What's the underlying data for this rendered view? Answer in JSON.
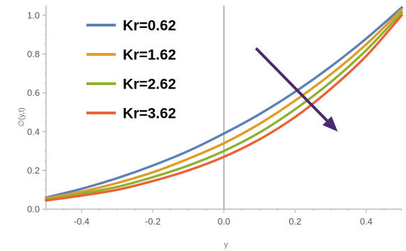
{
  "chart_data": {
    "type": "line",
    "xlabel": "y",
    "ylabel": "∅(y,t)",
    "xlim": [
      -0.5,
      0.5
    ],
    "ylim": [
      0.0,
      1.05
    ],
    "xticks": [
      "-0.4",
      "-0.2",
      "0.0",
      "0.2",
      "0.4"
    ],
    "yticks": [
      "0.0",
      "0.2",
      "0.4",
      "0.6",
      "0.8",
      "1.0"
    ],
    "legend_position": "top-left",
    "series": [
      {
        "name": "Kr=0.62",
        "color": "#5e81b5",
        "x": [
          -0.5,
          -0.4,
          -0.3,
          -0.2,
          -0.1,
          0.0,
          0.1,
          0.2,
          0.3,
          0.4,
          0.5
        ],
        "y": [
          0.06,
          0.105,
          0.16,
          0.225,
          0.3,
          0.39,
          0.49,
          0.605,
          0.735,
          0.88,
          1.04
        ]
      },
      {
        "name": "Kr=1.62",
        "color": "#e19c24",
        "x": [
          -0.5,
          -0.4,
          -0.3,
          -0.2,
          -0.1,
          0.0,
          0.1,
          0.2,
          0.3,
          0.4,
          0.5
        ],
        "y": [
          0.055,
          0.09,
          0.135,
          0.19,
          0.26,
          0.34,
          0.44,
          0.56,
          0.695,
          0.85,
          1.03
        ]
      },
      {
        "name": "Kr=2.62",
        "color": "#8fb032",
        "x": [
          -0.5,
          -0.4,
          -0.3,
          -0.2,
          -0.1,
          0.0,
          0.1,
          0.2,
          0.3,
          0.4,
          0.5
        ],
        "y": [
          0.05,
          0.08,
          0.115,
          0.165,
          0.225,
          0.3,
          0.395,
          0.515,
          0.655,
          0.82,
          1.015
        ]
      },
      {
        "name": "Kr=3.62",
        "color": "#eb6235",
        "x": [
          -0.5,
          -0.4,
          -0.3,
          -0.2,
          -0.1,
          0.0,
          0.1,
          0.2,
          0.3,
          0.4,
          0.5
        ],
        "y": [
          0.045,
          0.07,
          0.1,
          0.145,
          0.2,
          0.27,
          0.36,
          0.475,
          0.62,
          0.79,
          1.0
        ]
      }
    ],
    "annotation": {
      "type": "arrow",
      "color": "#4b2a6b",
      "from": [
        0.09,
        0.83
      ],
      "to": [
        0.32,
        0.4
      ]
    }
  }
}
